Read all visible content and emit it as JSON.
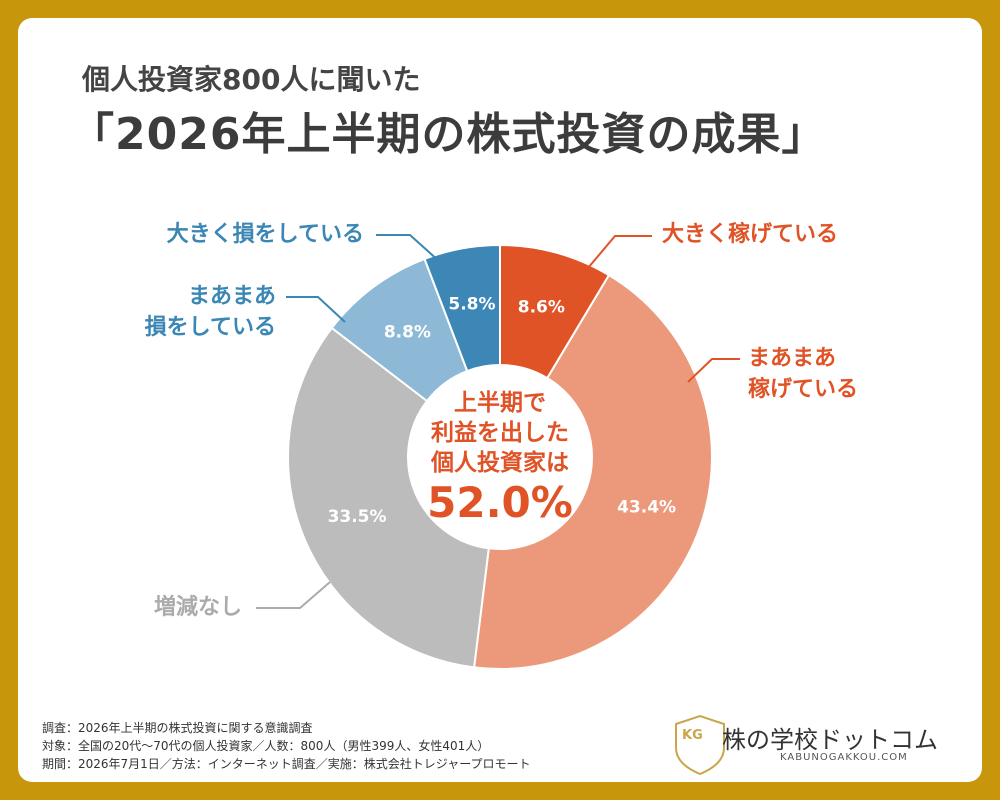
{
  "header": {
    "subtitle": "個人投資家800人に聞いた",
    "title": "「2026年上半期の株式投資の成果」"
  },
  "chart_data": {
    "type": "pie",
    "categories": [
      "大きく稼げている",
      "まあまあ\n稼げている",
      "増減なし",
      "まあまあ\n損をしている",
      "大きく損をしている"
    ],
    "values": [
      8.6,
      43.4,
      33.5,
      8.8,
      5.8
    ],
    "value_labels": [
      "8.6%",
      "43.4%",
      "33.5%",
      "8.8%",
      "5.8%"
    ],
    "colors": [
      "#e05327",
      "#ec997b",
      "#bcbcbc",
      "#8db9d7",
      "#3d87b6"
    ],
    "label_colors": [
      "#e05327",
      "#e05327",
      "#ababab",
      "#3a86b4",
      "#3a86b4"
    ],
    "center": {
      "text": "上半期で\n利益を出した\n個人投資家は",
      "highlight": "52.0%"
    }
  },
  "footnotes": [
    "調査：2026年上半期の株式投資に関する意識調査",
    "対象：全国の20代〜70代の個人投資家／人数：800人（男性399人、女性401人）",
    "期間：2026年7月1日／方法：インターネット調査／実施：株式会社トレジャープロモート"
  ],
  "logo": {
    "mark": "KG",
    "name": "株の学校ドットコム",
    "url": "KABUNOGAKKOU.COM"
  }
}
